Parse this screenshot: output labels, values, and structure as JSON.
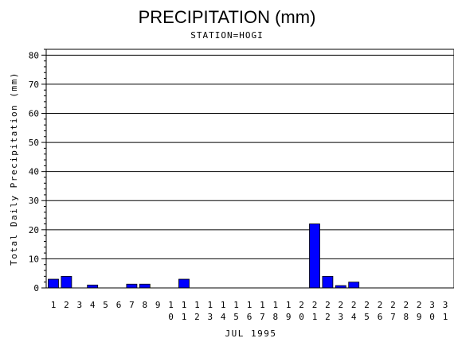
{
  "chart_data": {
    "type": "bar",
    "title": "PRECIPITATION (mm)",
    "subtitle": "STATION=HOGI",
    "xlabel": "JUL 1995",
    "ylabel": "Total Daily Precipitation (mm)",
    "ylim": [
      0,
      82
    ],
    "yticks": [
      0,
      10,
      20,
      30,
      40,
      50,
      60,
      70,
      80
    ],
    "grid": true,
    "bar_color": "#0000ff",
    "categories": [
      "1",
      "2",
      "3",
      "4",
      "5",
      "6",
      "7",
      "8",
      "9",
      "10",
      "11",
      "12",
      "13",
      "14",
      "15",
      "16",
      "17",
      "18",
      "19",
      "20",
      "21",
      "22",
      "23",
      "24",
      "25",
      "26",
      "27",
      "28",
      "29",
      "30",
      "31"
    ],
    "values": [
      3.0,
      4.0,
      0,
      1.0,
      0,
      0,
      1.3,
      1.3,
      0,
      0,
      3.0,
      0,
      0,
      0,
      0,
      0,
      0,
      0,
      0,
      0,
      22.0,
      4.0,
      0.8,
      2.0,
      0,
      0,
      0,
      0,
      0,
      0,
      0
    ]
  }
}
